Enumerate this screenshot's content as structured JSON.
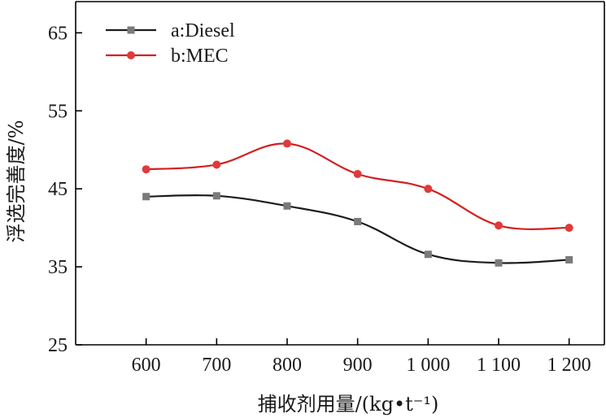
{
  "chart_data": {
    "type": "line",
    "title": "",
    "xlabel": "捕收剂用量/(kg•t⁻¹)",
    "ylabel": "浮选完善度/%",
    "x": [
      600,
      700,
      800,
      900,
      1000,
      1100,
      1200
    ],
    "x_tick_labels": [
      "600",
      "700",
      "800",
      "900",
      "1 000",
      "1 100",
      "1 200"
    ],
    "y_ticks": [
      25,
      35,
      45,
      55,
      65
    ],
    "y_tick_labels": [
      "25",
      "35",
      "45",
      "55",
      "65"
    ],
    "xlim": [
      500,
      1250
    ],
    "ylim": [
      25,
      69
    ],
    "grid": false,
    "legend_position": "top-left",
    "series": [
      {
        "name": "a:Diesel",
        "marker": "square",
        "color": "#1c1c1c",
        "marker_color": "#7a7a7a",
        "values": [
          44.0,
          44.1,
          42.8,
          40.8,
          36.6,
          35.5,
          35.9
        ]
      },
      {
        "name": "b:MEC",
        "marker": "circle",
        "color": "#d42020",
        "marker_color": "#e03a3a",
        "values": [
          47.5,
          48.1,
          50.8,
          46.9,
          45.0,
          40.3,
          40.0
        ]
      }
    ]
  }
}
